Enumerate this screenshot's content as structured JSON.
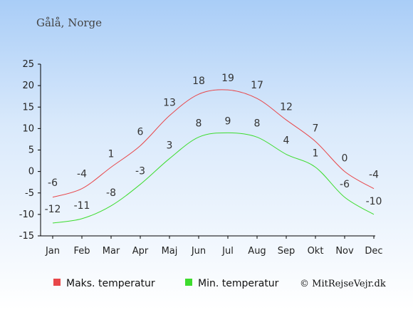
{
  "chart_data": {
    "type": "line",
    "title": "Gålå, Norge",
    "categories": [
      "Jan",
      "Feb",
      "Mar",
      "Apr",
      "Maj",
      "Jun",
      "Jul",
      "Aug",
      "Sep",
      "Okt",
      "Nov",
      "Dec"
    ],
    "ylim": [
      -15,
      25
    ],
    "yticks": [
      -15,
      -10,
      -5,
      0,
      5,
      10,
      15,
      20,
      25
    ],
    "grid": false,
    "legend_position": "bottom",
    "series": [
      {
        "name": "Maks. temperatur",
        "color": "#e8474a",
        "values": [
          -6,
          -4,
          1,
          6,
          13,
          18,
          19,
          17,
          12,
          7,
          0,
          -4
        ]
      },
      {
        "name": "Min. temperatur",
        "color": "#3ddc2e",
        "values": [
          -12,
          -11,
          -8,
          -3,
          3,
          8,
          9,
          8,
          4,
          1,
          -6,
          -10
        ]
      }
    ]
  },
  "credit": "© MitRejseVejr.dk"
}
